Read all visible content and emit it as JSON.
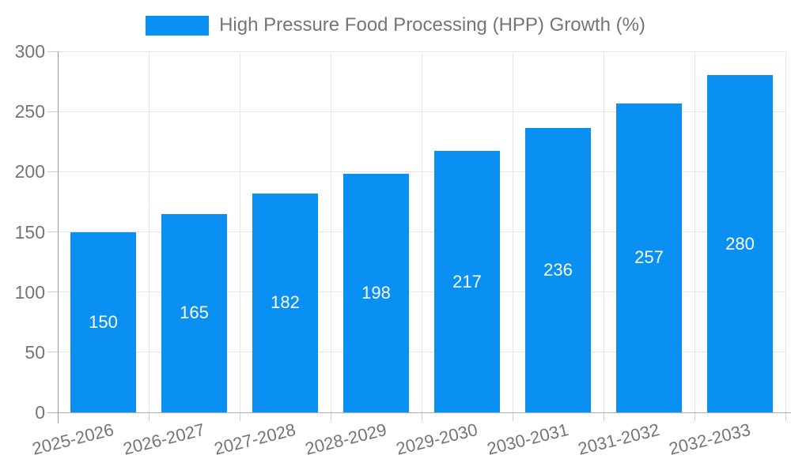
{
  "chart_data": {
    "type": "bar",
    "title": "High Pressure Food Processing (HPP) Growth (%)",
    "categories": [
      "2025-2026",
      "2026-2027",
      "2027-2028",
      "2028-2029",
      "2029-2030",
      "2030-2031",
      "2031-2032",
      "2032-2033"
    ],
    "values": [
      150,
      165,
      182,
      198,
      217,
      236,
      257,
      280
    ],
    "xlabel": "",
    "ylabel": "",
    "ylim": [
      0,
      300
    ],
    "yticks": [
      0,
      50,
      100,
      150,
      200,
      250,
      300
    ],
    "grid": true,
    "legend": {
      "position": "top",
      "entries": [
        {
          "label": "High Pressure Food Processing (HPP) Growth (%)",
          "color": "#0a8ff2"
        }
      ]
    },
    "colors": {
      "bar": "#0a8ff2",
      "bar_value_label": "#ffffff",
      "axis_text": "#757575",
      "gridline": "#e6e6e6",
      "axis_line": "#9e9e9e"
    }
  }
}
